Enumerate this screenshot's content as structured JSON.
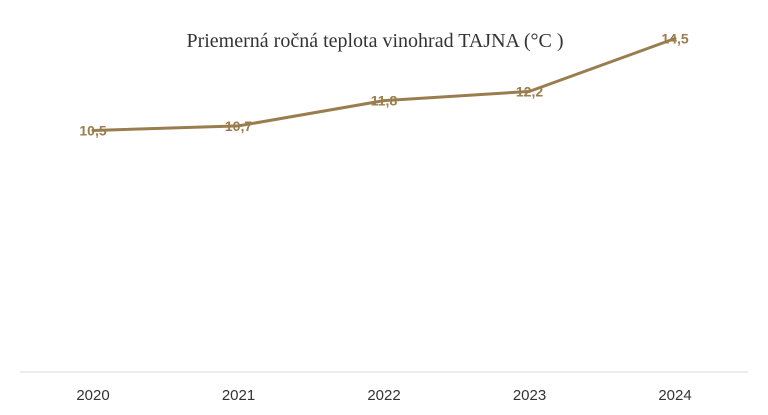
{
  "chart_data": {
    "type": "line",
    "title": "Priemerná ročná teplota vinohrad TAJNA (°C )",
    "xlabel": "",
    "ylabel": "",
    "categories": [
      "2020",
      "2021",
      "2022",
      "2023",
      "2024"
    ],
    "series": [
      {
        "values": [
          10.5,
          10.7,
          11.8,
          12.2,
          14.5
        ],
        "labels": [
          "10,5",
          "10,7",
          "11,8",
          "12,2",
          "14,5"
        ]
      }
    ],
    "ylim": [
      0,
      16
    ],
    "grid": false,
    "legend": "none",
    "colors": {
      "line": "#9a7d4f",
      "label": "#9a7d4f",
      "axis": "#d9d9d9"
    }
  }
}
